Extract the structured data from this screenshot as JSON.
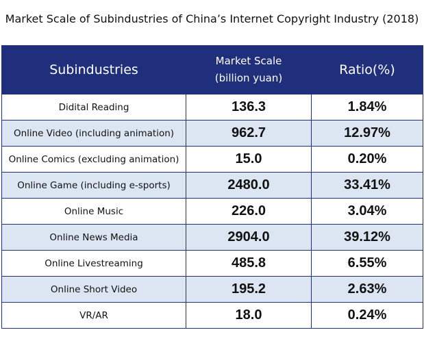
{
  "chart_data": {
    "type": "table",
    "title": "Market Scale of Subindustries of China’s Internet Copyright Industry (2018)",
    "columns": [
      "Subindustries",
      "Market Scale",
      "(billion yuan)",
      "Ratio(%)"
    ],
    "rows": [
      {
        "name": "Didital Reading",
        "value": "136.3",
        "ratio": "1.84%"
      },
      {
        "name": "Online Video (including animation)",
        "value": "962.7",
        "ratio": "12.97%"
      },
      {
        "name": "Online Comics (excluding animation)",
        "value": "15.0",
        "ratio": "0.20%"
      },
      {
        "name": "Online Game (including e-sports)",
        "value": "2480.0",
        "ratio": "33.41%"
      },
      {
        "name": "Online Music",
        "value": "226.0",
        "ratio": "3.04%"
      },
      {
        "name": "Online News Media",
        "value": "2904.0",
        "ratio": "39.12%"
      },
      {
        "name": "Online Livestreaming",
        "value": "485.8",
        "ratio": "6.55%"
      },
      {
        "name": "Online Short Video",
        "value": "195.2",
        "ratio": "2.63%"
      },
      {
        "name": "VR/AR",
        "value": "18.0",
        "ratio": "0.24%"
      }
    ]
  },
  "colors": {
    "header_bg": "#1f2f7c",
    "header_text": "#ffffff",
    "stripe": "#dce6f3",
    "border": "#1f2f7c"
  }
}
